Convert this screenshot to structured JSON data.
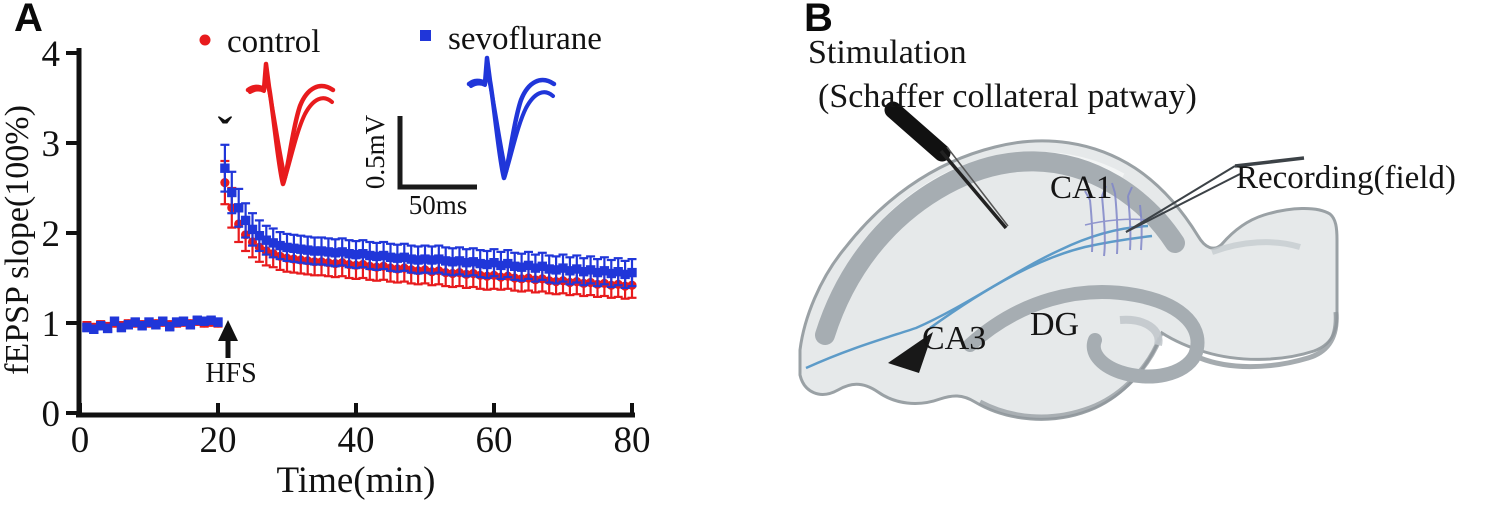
{
  "figure": {
    "panel_a_label": "A",
    "panel_b_label": "B"
  },
  "chart_data": {
    "type": "scatter",
    "title": "",
    "xlabel": "Time(min)",
    "ylabel": "fEPSP slope(100%)",
    "xlim": [
      0,
      80
    ],
    "ylim": [
      0,
      4
    ],
    "xticks": [
      "0",
      "20",
      "40",
      "60",
      "80"
    ],
    "yticks": [
      "0",
      "1",
      "2",
      "3",
      "4"
    ],
    "grid": false,
    "legend_position": "top",
    "annotations": {
      "hfs_label": "HFS",
      "hfs_x": 21.5,
      "post_hfs_mark": "ˇ"
    },
    "inset": {
      "scale_vertical": "0.5mV",
      "scale_horizontal": "50ms"
    },
    "x": [
      1,
      2,
      3,
      4,
      5,
      6,
      7,
      8,
      9,
      10,
      11,
      12,
      13,
      14,
      15,
      16,
      17,
      18,
      19,
      20,
      21,
      22,
      23,
      24,
      25,
      26,
      27,
      28,
      29,
      30,
      31,
      32,
      33,
      34,
      35,
      36,
      37,
      38,
      39,
      40,
      41,
      42,
      43,
      44,
      45,
      46,
      47,
      48,
      49,
      50,
      51,
      52,
      53,
      54,
      55,
      56,
      57,
      58,
      59,
      60,
      61,
      62,
      63,
      64,
      65,
      66,
      67,
      68,
      69,
      70,
      71,
      72,
      73,
      74,
      75,
      76,
      77,
      78,
      79,
      80
    ],
    "series": [
      {
        "name": "control",
        "marker": "circle",
        "color": "#e81b1d",
        "values": [
          0.97,
          0.95,
          0.98,
          0.96,
          1.0,
          0.97,
          0.99,
          1.0,
          0.98,
          1.0,
          0.99,
          1.01,
          0.98,
          1.0,
          1.01,
          0.99,
          1.02,
          1.0,
          1.01,
          1.0,
          2.56,
          2.28,
          2.1,
          1.98,
          1.9,
          1.84,
          1.8,
          1.77,
          1.74,
          1.72,
          1.71,
          1.7,
          1.69,
          1.68,
          1.68,
          1.67,
          1.66,
          1.67,
          1.65,
          1.64,
          1.65,
          1.63,
          1.62,
          1.63,
          1.61,
          1.6,
          1.61,
          1.59,
          1.58,
          1.59,
          1.57,
          1.58,
          1.56,
          1.55,
          1.56,
          1.54,
          1.55,
          1.53,
          1.52,
          1.53,
          1.51,
          1.52,
          1.5,
          1.49,
          1.5,
          1.48,
          1.49,
          1.47,
          1.46,
          1.47,
          1.45,
          1.46,
          1.44,
          1.45,
          1.43,
          1.44,
          1.42,
          1.43,
          1.41,
          1.42
        ],
        "errors": [
          0.04,
          0.04,
          0.04,
          0.04,
          0.04,
          0.04,
          0.04,
          0.04,
          0.04,
          0.04,
          0.04,
          0.04,
          0.04,
          0.04,
          0.04,
          0.04,
          0.04,
          0.04,
          0.04,
          0.04,
          0.24,
          0.22,
          0.2,
          0.18,
          0.17,
          0.16,
          0.16,
          0.15,
          0.15,
          0.15,
          0.15,
          0.15,
          0.15,
          0.15,
          0.15,
          0.15,
          0.15,
          0.15,
          0.15,
          0.15,
          0.15,
          0.15,
          0.15,
          0.15,
          0.15,
          0.15,
          0.15,
          0.15,
          0.15,
          0.15,
          0.15,
          0.15,
          0.15,
          0.15,
          0.15,
          0.15,
          0.15,
          0.15,
          0.15,
          0.15,
          0.14,
          0.14,
          0.14,
          0.14,
          0.14,
          0.14,
          0.14,
          0.14,
          0.14,
          0.14,
          0.14,
          0.14,
          0.14,
          0.14,
          0.14,
          0.14,
          0.14,
          0.14,
          0.14,
          0.14
        ]
      },
      {
        "name": "sevoflurane",
        "marker": "square",
        "color": "#2036d9",
        "values": [
          0.95,
          0.93,
          0.97,
          0.94,
          1.02,
          0.95,
          0.98,
          1.01,
          0.97,
          1.01,
          0.98,
          1.02,
          0.96,
          1.01,
          1.02,
          0.98,
          1.03,
          1.02,
          1.03,
          1.01,
          2.72,
          2.45,
          2.28,
          2.14,
          2.04,
          1.97,
          1.92,
          1.89,
          1.86,
          1.84,
          1.83,
          1.82,
          1.81,
          1.8,
          1.8,
          1.79,
          1.78,
          1.79,
          1.77,
          1.76,
          1.77,
          1.75,
          1.74,
          1.75,
          1.73,
          1.72,
          1.73,
          1.71,
          1.7,
          1.71,
          1.7,
          1.71,
          1.69,
          1.68,
          1.69,
          1.67,
          1.68,
          1.66,
          1.65,
          1.67,
          1.64,
          1.66,
          1.63,
          1.62,
          1.64,
          1.61,
          1.63,
          1.6,
          1.59,
          1.61,
          1.58,
          1.6,
          1.57,
          1.59,
          1.56,
          1.58,
          1.55,
          1.57,
          1.54,
          1.56
        ],
        "errors": [
          0.04,
          0.04,
          0.04,
          0.04,
          0.04,
          0.04,
          0.04,
          0.04,
          0.04,
          0.04,
          0.04,
          0.04,
          0.04,
          0.04,
          0.04,
          0.04,
          0.04,
          0.04,
          0.04,
          0.04,
          0.26,
          0.23,
          0.21,
          0.19,
          0.18,
          0.17,
          0.16,
          0.16,
          0.15,
          0.15,
          0.15,
          0.15,
          0.15,
          0.15,
          0.15,
          0.15,
          0.15,
          0.15,
          0.15,
          0.15,
          0.15,
          0.15,
          0.15,
          0.15,
          0.15,
          0.15,
          0.15,
          0.15,
          0.15,
          0.15,
          0.15,
          0.15,
          0.15,
          0.15,
          0.15,
          0.15,
          0.15,
          0.15,
          0.15,
          0.15,
          0.15,
          0.15,
          0.15,
          0.15,
          0.15,
          0.15,
          0.15,
          0.15,
          0.15,
          0.15,
          0.15,
          0.15,
          0.15,
          0.15,
          0.15,
          0.15,
          0.15,
          0.15,
          0.15,
          0.15
        ]
      }
    ]
  },
  "panel_b": {
    "labels": {
      "stimulation_line1": "Stimulation",
      "stimulation_line2": "(Schaffer collateral patway)",
      "ca1": "CA1",
      "recording": "Recording(field)",
      "ca3": "CA3",
      "dg": "DG"
    }
  }
}
